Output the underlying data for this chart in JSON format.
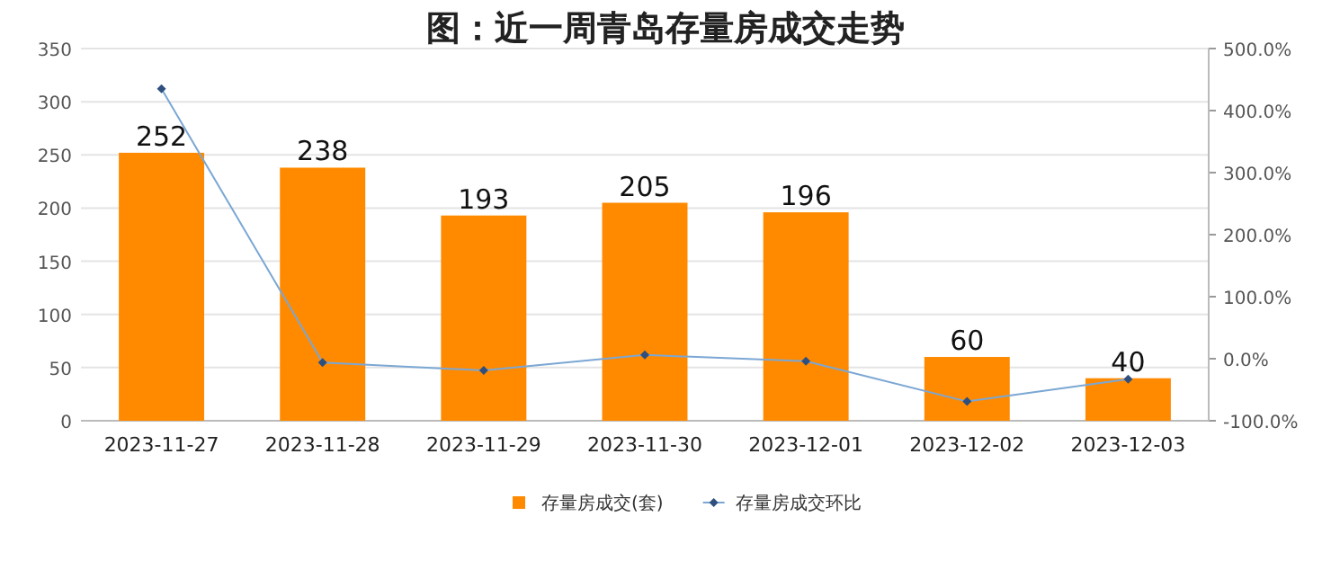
{
  "chart_data": {
    "type": "bar",
    "title": "图：近一周青岛存量房成交走势",
    "categories": [
      "2023-11-27",
      "2023-11-28",
      "2023-11-29",
      "2023-11-30",
      "2023-12-01",
      "2023-12-02",
      "2023-12-03"
    ],
    "series": [
      {
        "name": "存量房成交(套)",
        "color": "#ff8a00",
        "values": [
          252,
          238,
          193,
          205,
          196,
          60,
          40
        ],
        "value_labels": [
          "252",
          "238",
          "193",
          "205",
          "196",
          "60",
          "40"
        ]
      },
      {
        "name": "存量房成交环比",
        "type": "line",
        "axis": "y2",
        "color": "#7ba7d4",
        "marker": "diamond",
        "values": [
          435,
          -6,
          -19,
          6,
          -4,
          -69,
          -33
        ]
      }
    ],
    "ylim": [
      0,
      350
    ],
    "yticks": [
      0,
      50,
      100,
      150,
      200,
      250,
      300,
      350
    ],
    "y2lim": [
      -100,
      500
    ],
    "y2ticks": [
      {
        "value": -100,
        "label": "-100.0%"
      },
      {
        "value": 0,
        "label": "0.0%"
      },
      {
        "value": 100,
        "label": "100.0%"
      },
      {
        "value": 200,
        "label": "200.0%"
      },
      {
        "value": 300,
        "label": "300.0%"
      },
      {
        "value": 400,
        "label": "400.0%"
      },
      {
        "value": 500,
        "label": "500.0%"
      }
    ],
    "grid": "y",
    "legend": "bottom"
  }
}
